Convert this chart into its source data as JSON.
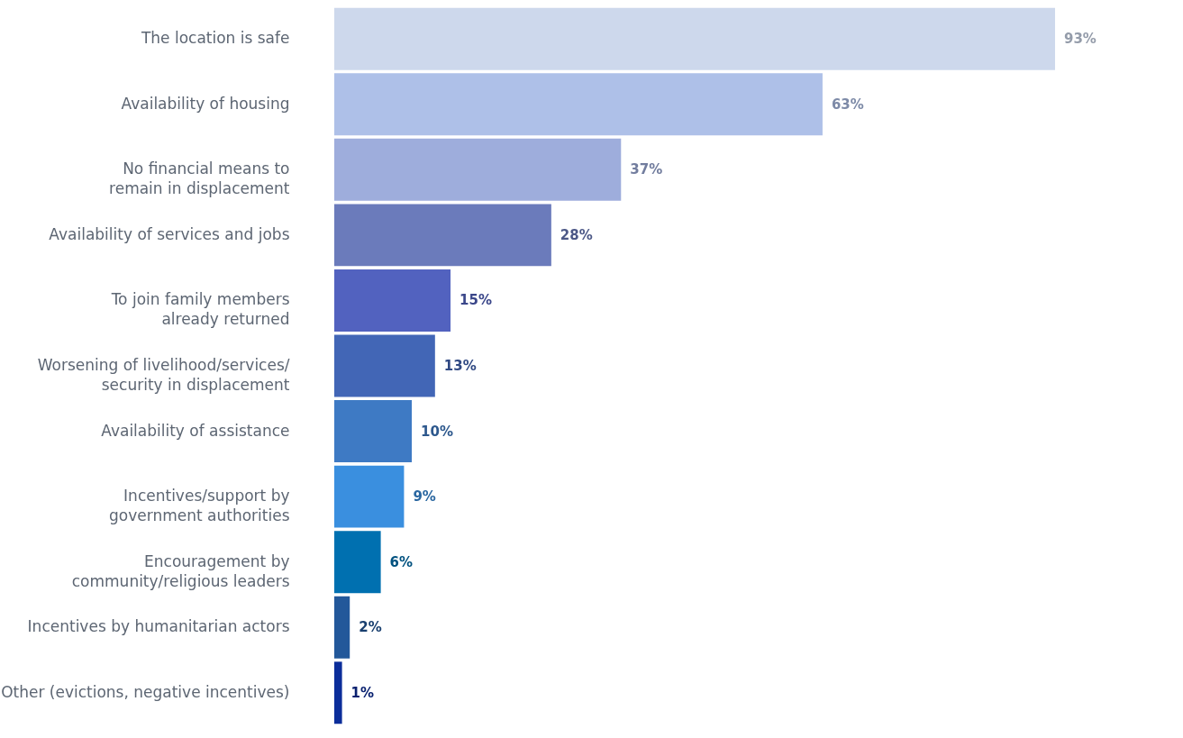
{
  "chart_data": {
    "type": "bar",
    "orientation": "horizontal",
    "relative": false,
    "categories": [
      "The location is safe",
      "Availability of housing",
      "No financial means to\nremain in displacement",
      "Availability of services and jobs",
      "To join family members\nalready returned",
      "Worsening of livelihood/services/\nsecurity in displacement",
      "Availability of assistance",
      "Incentives/support by\ngovernment authorities",
      "Encouragement by\ncommunity/religious leaders",
      "Incentives by humanitarian actors",
      "Other (evictions, negative incentives)"
    ],
    "values": [
      93,
      63,
      37,
      28,
      15,
      13,
      10,
      9,
      6,
      2,
      1
    ],
    "value_labels": [
      "93%",
      "63%",
      "37%",
      "28%",
      "15%",
      "13%",
      "10%",
      "9%",
      "6%",
      "2%",
      "1%"
    ],
    "colors": [
      "#cdd8ec",
      "#aec0e8",
      "#9eaddc",
      "#6b7bbb",
      "#5262bf",
      "#4266b6",
      "#3e7ac4",
      "#3a8fdf",
      "#0070b0",
      "#23589a",
      "#0b2d9a"
    ]
  }
}
